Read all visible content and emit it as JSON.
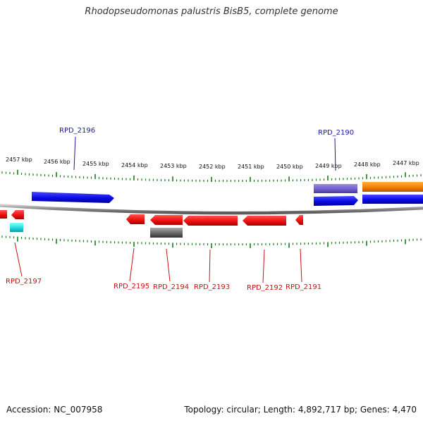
{
  "title": "Rhodopseudomonas palustris BisB5, complete genome",
  "footer": {
    "accession": "Accession: NC_007958",
    "summary": "Topology: circular; Length: 4,892,717 bp; Genes: 4,470"
  },
  "colors": {
    "forward_strand": "#1010e0",
    "reverse_strand": "#ee1111",
    "forward_label": "#1a1aa0",
    "reverse_label": "#cc1111",
    "tick": "#1a7a1a",
    "backbone": "#8a8a8a",
    "purple_feature": "#7060cc",
    "orange_feature": "#f08000",
    "cyan_feature": "#22dddd",
    "gray_feature": "#666666"
  },
  "scale_labels": [
    "2457 kbp",
    "2456 kbp",
    "2455 kbp",
    "2454 kbp",
    "2453 kbp",
    "2452 kbp",
    "2451 kbp",
    "2450 kbp",
    "2449 kbp",
    "2448 kbp",
    "2447 kbp"
  ],
  "genes": [
    {
      "id": "RPD_2196",
      "strand": "forward"
    },
    {
      "id": "RPD_2190",
      "strand": "forward"
    },
    {
      "id": "RPD_2197",
      "strand": "reverse"
    },
    {
      "id": "RPD_2195",
      "strand": "reverse"
    },
    {
      "id": "RPD_2194",
      "strand": "reverse"
    },
    {
      "id": "RPD_2193",
      "strand": "reverse"
    },
    {
      "id": "RPD_2192",
      "strand": "reverse"
    },
    {
      "id": "RPD_2191",
      "strand": "reverse"
    }
  ]
}
